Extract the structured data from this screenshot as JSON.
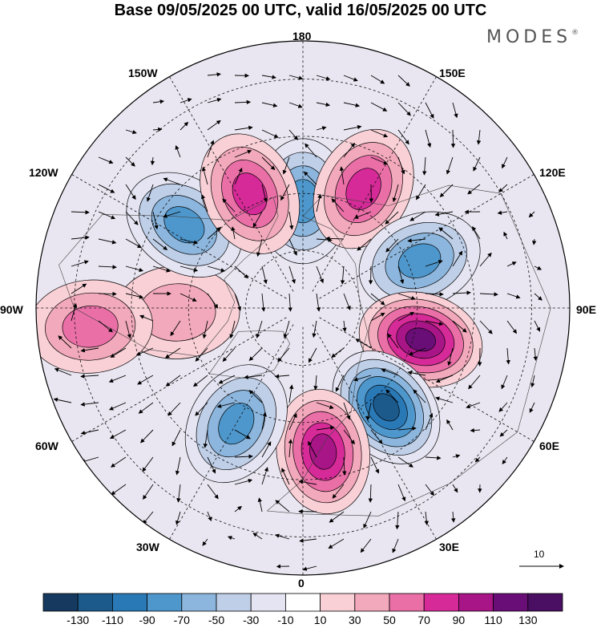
{
  "title": "Base 09/05/2025 00 UTC, valid 16/05/2025 00 UTC",
  "brand": "MODES",
  "lon_labels": {
    "l180": "180",
    "l150e": "150E",
    "l120e": "120E",
    "l90e": "90E",
    "l60e": "60E",
    "l30e": "30E",
    "l0": "0",
    "l30w": "30W",
    "l60w": "60W",
    "l90w": "90W",
    "l120w": "120W",
    "l150w": "150W"
  },
  "colorbar": {
    "ticks": [
      "-130",
      "-110",
      "-90",
      "-70",
      "-50",
      "-30",
      "-10",
      "10",
      "30",
      "50",
      "70",
      "90",
      "110",
      "130"
    ],
    "colors": [
      "#163a5f",
      "#1c5a8c",
      "#2a79b7",
      "#4e97cc",
      "#8cb6dd",
      "#bfcfe8",
      "#e4e4f2",
      "#ffffff",
      "#f8d0d6",
      "#f2a9bb",
      "#ea6fa7",
      "#d52a97",
      "#a71587",
      "#6a0e77",
      "#4a0e62"
    ]
  },
  "vector_reference": "10",
  "anomalies": [
    {
      "lon": 180,
      "lat": 62,
      "sign": "negative",
      "peak": -85
    },
    {
      "lon": 153,
      "lat": 55,
      "sign": "positive",
      "peak": 90
    },
    {
      "lon": 112,
      "lat": 57,
      "sign": "negative",
      "peak": -95
    },
    {
      "lon": 75,
      "lat": 58,
      "sign": "positive",
      "peak": 125
    },
    {
      "lon": 40,
      "lat": 56,
      "sign": "negative",
      "peak": -125
    },
    {
      "lon": 8,
      "lat": 52,
      "sign": "positive",
      "peak": 105
    },
    {
      "lon": -30,
      "lat": 55,
      "sign": "negative",
      "peak": -95
    },
    {
      "lon": -88,
      "lat": 57,
      "sign": "positive",
      "peak": 55
    },
    {
      "lon": -85,
      "lat": 34,
      "sign": "positive",
      "peak": 75
    },
    {
      "lon": -125,
      "lat": 52,
      "sign": "negative",
      "peak": -90
    },
    {
      "lon": -155,
      "lat": 57,
      "sign": "positive",
      "peak": 95
    }
  ]
}
